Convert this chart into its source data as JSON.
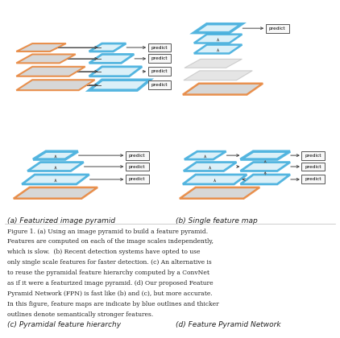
{
  "bg_color": "#ffffff",
  "caption_a": "(a) Featurized image pyramid",
  "caption_b": "(b) Single feature map",
  "caption_c": "(c) Pyramidal feature hierarchy",
  "caption_d": "(d) Feature Pyramid Network",
  "figure_text": "Figure 1. (a) Using an image pyramid to build a feature pyramid.\nFeatures are computed on each of the image scales independently,\nwhich is slow.  (b) Recent detection systems have opted to use\nonly single scale features for faster detection. (c) An alternative is\nto reuse the pyramidal feature hierarchy computed by a ConvNet\nas if it were a featurized image pyramid. (d) Our proposed Feature\nPyramid Network (FPN) is fast like (b) and (c), but more accurate.\nIn this figure, feature maps are indicate by blue outlines and thicker\noutlines denote semantically stronger features.",
  "orange": "#E87722",
  "blue": "#3EACDC",
  "dark": "#222222"
}
